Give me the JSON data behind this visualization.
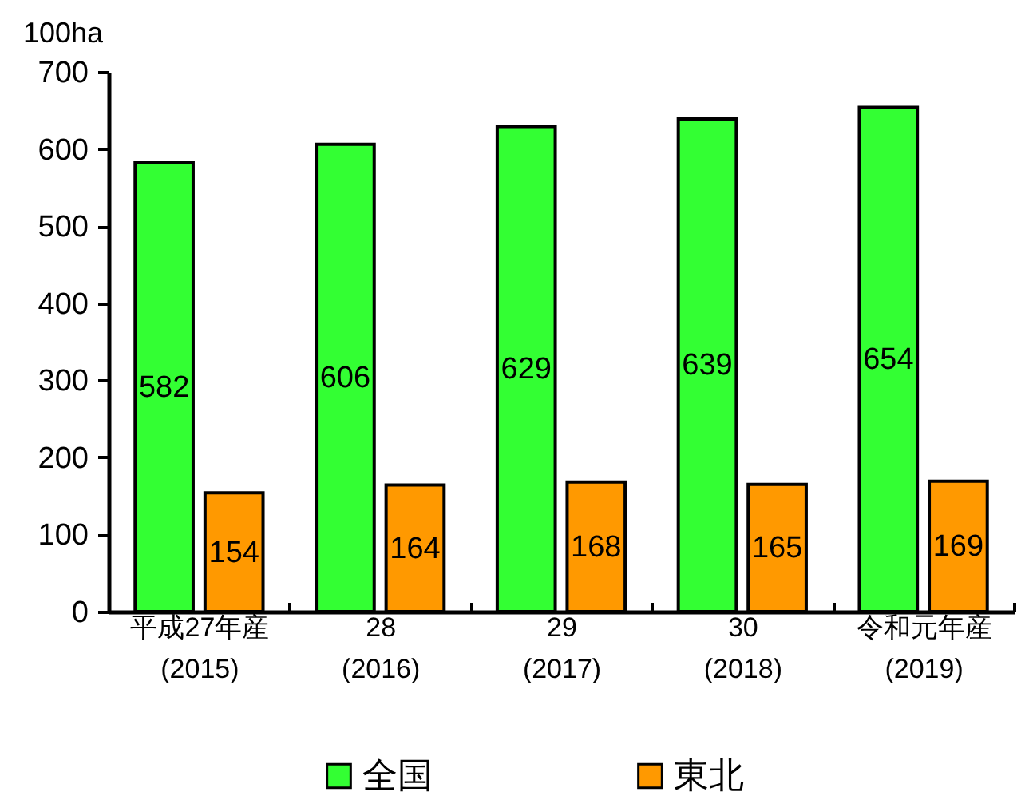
{
  "chart_data": {
    "type": "bar",
    "ylabel": "100ha",
    "categories": [
      "平成27年産\n(2015)",
      "28\n(2016)",
      "29\n(2017)",
      "30\n(2018)",
      "令和元年産\n(2019)"
    ],
    "series": [
      {
        "name": "全国",
        "color": "#33ff33",
        "values": [
          582,
          606,
          629,
          639,
          654
        ]
      },
      {
        "name": "東北",
        "color": "#ff9900",
        "values": [
          154,
          164,
          168,
          165,
          169
        ]
      }
    ],
    "ylim": [
      0,
      700
    ],
    "yticks": [
      0,
      100,
      200,
      300,
      400,
      500,
      600,
      700
    ],
    "data_labels": true,
    "legend": "bottom"
  }
}
